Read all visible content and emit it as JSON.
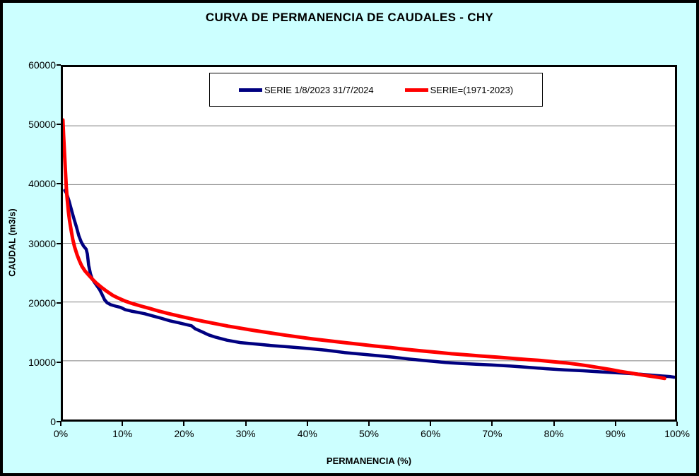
{
  "colors": {
    "background": "#CCFFFF",
    "plot_background": "#FFFFFF",
    "border": "#000000",
    "gridline": "#808080",
    "text": "#000000",
    "series_blue": "#000080",
    "series_red": "#FF0000"
  },
  "chart_data": {
    "type": "line",
    "title": "CURVA DE PERMANENCIA DE CAUDALES - CHY",
    "xlabel": "PERMANENCIA (%)",
    "ylabel": "CAUDAL (m3/s)",
    "xlim": [
      0,
      100
    ],
    "ylim": [
      0,
      60000
    ],
    "x_ticks": [
      "0%",
      "10%",
      "20%",
      "30%",
      "40%",
      "50%",
      "60%",
      "70%",
      "80%",
      "90%",
      "100%"
    ],
    "y_ticks": [
      "0",
      "10000",
      "20000",
      "30000",
      "40000",
      "50000",
      "60000"
    ],
    "gridline_values": [
      10000,
      20000,
      30000,
      40000,
      50000
    ],
    "grid": "horizontal",
    "legend_position": "top-center",
    "series": [
      {
        "name": "SERIE 1/8/2023 31/7/2024",
        "color": "#000080",
        "width": 4.5,
        "points": [
          [
            0.3,
            39000
          ],
          [
            0.6,
            38500
          ],
          [
            1.0,
            37200
          ],
          [
            1.4,
            35700
          ],
          [
            1.8,
            34200
          ],
          [
            2.2,
            32800
          ],
          [
            2.6,
            31300
          ],
          [
            3.0,
            30200
          ],
          [
            3.4,
            29500
          ],
          [
            3.8,
            29000
          ],
          [
            4.0,
            28200
          ],
          [
            4.2,
            26300
          ],
          [
            4.5,
            24800
          ],
          [
            4.8,
            23900
          ],
          [
            5.2,
            23300
          ],
          [
            5.6,
            22700
          ],
          [
            6.0,
            22100
          ],
          [
            6.4,
            21300
          ],
          [
            6.8,
            20400
          ],
          [
            7.2,
            19900
          ],
          [
            7.8,
            19550
          ],
          [
            8.6,
            19300
          ],
          [
            9.4,
            19100
          ],
          [
            10.2,
            18700
          ],
          [
            11.2,
            18450
          ],
          [
            12.2,
            18250
          ],
          [
            13.4,
            18000
          ],
          [
            14.6,
            17650
          ],
          [
            16.0,
            17250
          ],
          [
            17.5,
            16800
          ],
          [
            19.0,
            16450
          ],
          [
            20.2,
            16150
          ],
          [
            21.0,
            15950
          ],
          [
            21.6,
            15450
          ],
          [
            22.6,
            15000
          ],
          [
            23.8,
            14400
          ],
          [
            25.0,
            14000
          ],
          [
            26.8,
            13500
          ],
          [
            29.0,
            13100
          ],
          [
            31.5,
            12850
          ],
          [
            34.0,
            12600
          ],
          [
            37.0,
            12350
          ],
          [
            40.0,
            12100
          ],
          [
            43.0,
            11800
          ],
          [
            46.0,
            11400
          ],
          [
            48.5,
            11150
          ],
          [
            51.0,
            10900
          ],
          [
            54.0,
            10600
          ],
          [
            56.5,
            10300
          ],
          [
            58.0,
            10150
          ],
          [
            60.0,
            9950
          ],
          [
            62.5,
            9700
          ],
          [
            65.0,
            9550
          ],
          [
            67.5,
            9400
          ],
          [
            70.0,
            9280
          ],
          [
            73.0,
            9100
          ],
          [
            76.0,
            8880
          ],
          [
            79.0,
            8650
          ],
          [
            82.0,
            8450
          ],
          [
            85.0,
            8300
          ],
          [
            88.0,
            8100
          ],
          [
            90.0,
            7980
          ],
          [
            92.5,
            7850
          ],
          [
            94.5,
            7700
          ],
          [
            96.5,
            7520
          ],
          [
            98.0,
            7400
          ],
          [
            99.3,
            7300
          ],
          [
            99.9,
            7200
          ]
        ]
      },
      {
        "name": "SERIE=(1971-2023)",
        "color": "#FF0000",
        "width": 5,
        "points": [
          [
            0.0,
            51000
          ],
          [
            0.1,
            48500
          ],
          [
            0.25,
            45500
          ],
          [
            0.4,
            42500
          ],
          [
            0.55,
            39500
          ],
          [
            0.7,
            37500
          ],
          [
            0.9,
            35400
          ],
          [
            1.1,
            33800
          ],
          [
            1.35,
            32200
          ],
          [
            1.6,
            30700
          ],
          [
            1.9,
            29400
          ],
          [
            2.3,
            28100
          ],
          [
            2.7,
            27000
          ],
          [
            3.1,
            26100
          ],
          [
            3.6,
            25300
          ],
          [
            4.2,
            24600
          ],
          [
            4.8,
            23900
          ],
          [
            5.5,
            23200
          ],
          [
            6.3,
            22500
          ],
          [
            7.2,
            21800
          ],
          [
            8.2,
            21100
          ],
          [
            9.2,
            20600
          ],
          [
            10.3,
            20100
          ],
          [
            11.5,
            19700
          ],
          [
            12.8,
            19300
          ],
          [
            14.2,
            18900
          ],
          [
            15.7,
            18450
          ],
          [
            17.2,
            18050
          ],
          [
            19.0,
            17600
          ],
          [
            21.0,
            17150
          ],
          [
            23.0,
            16700
          ],
          [
            25.0,
            16300
          ],
          [
            27.0,
            15900
          ],
          [
            29.0,
            15550
          ],
          [
            31.0,
            15200
          ],
          [
            33.5,
            14800
          ],
          [
            36.0,
            14400
          ],
          [
            38.5,
            14050
          ],
          [
            41.0,
            13700
          ],
          [
            43.5,
            13400
          ],
          [
            46.0,
            13100
          ],
          [
            48.5,
            12800
          ],
          [
            51.0,
            12500
          ],
          [
            53.5,
            12250
          ],
          [
            56.0,
            11950
          ],
          [
            58.5,
            11700
          ],
          [
            61.0,
            11450
          ],
          [
            63.5,
            11200
          ],
          [
            66.0,
            11000
          ],
          [
            68.5,
            10800
          ],
          [
            71.0,
            10600
          ],
          [
            73.5,
            10400
          ],
          [
            76.0,
            10200
          ],
          [
            78.0,
            10050
          ],
          [
            80.0,
            9850
          ],
          [
            82.0,
            9650
          ],
          [
            84.0,
            9400
          ],
          [
            86.0,
            9100
          ],
          [
            88.0,
            8750
          ],
          [
            89.5,
            8500
          ],
          [
            91.0,
            8200
          ],
          [
            92.5,
            7950
          ],
          [
            94.0,
            7700
          ],
          [
            95.5,
            7450
          ],
          [
            96.8,
            7250
          ],
          [
            97.8,
            7100
          ],
          [
            98.3,
            7000
          ]
        ]
      }
    ]
  }
}
